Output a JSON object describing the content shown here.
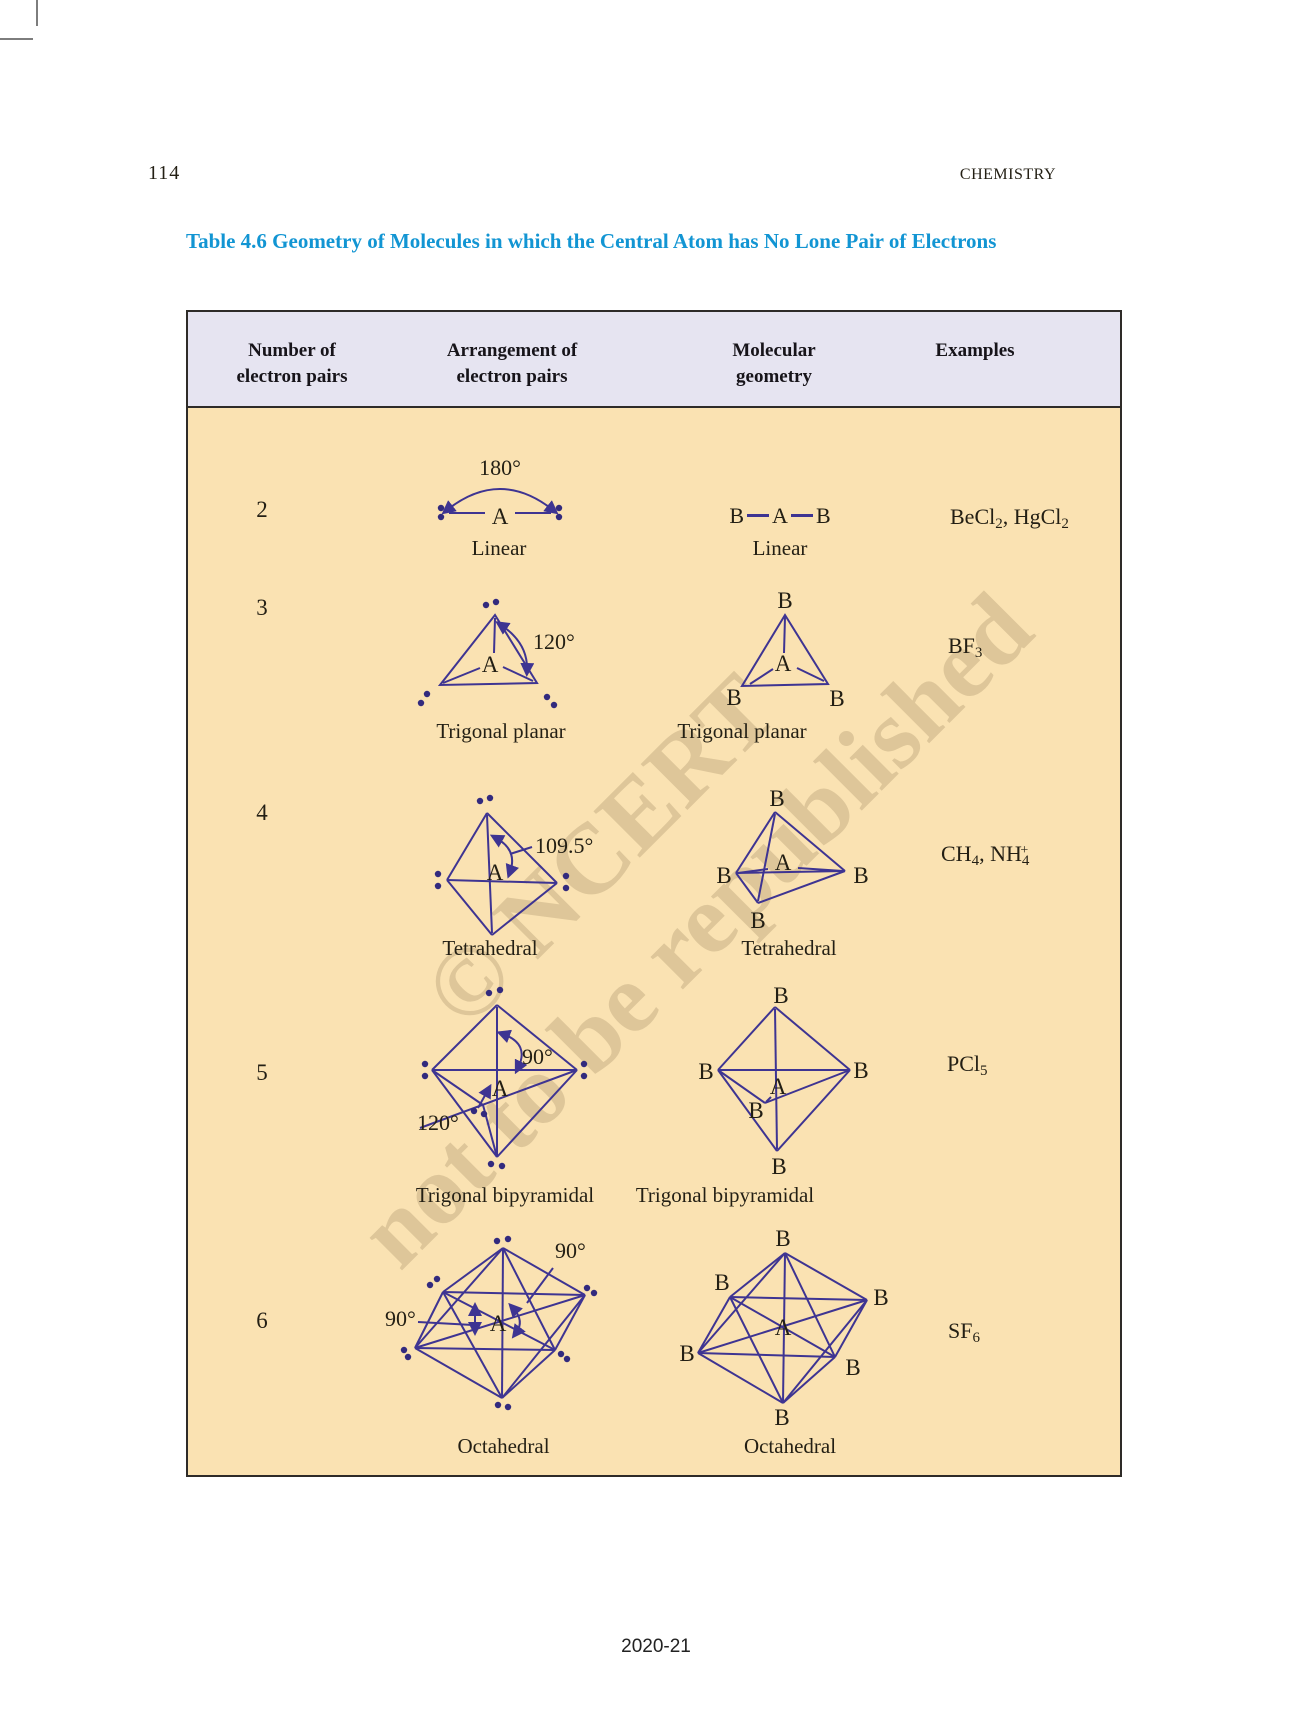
{
  "page": {
    "number": "114",
    "subject": "CHEMISTRY",
    "footer": "2020-21"
  },
  "title": "Table 4.6  Geometry of Molecules in which the Central Atom has No Lone Pair of Electrons",
  "watermark": {
    "line1": "© NCERT",
    "line2": "not to be republished"
  },
  "colors": {
    "title_blue": "#1295d3",
    "header_bg": "#e6e4f1",
    "body_bg": "#fae2b2",
    "diagram_ink": "#3e3492",
    "lone_pair_dot": "#322a7e"
  },
  "table": {
    "headers": [
      [
        "Number of",
        "electron pairs"
      ],
      [
        "Arrangement of",
        "electron pairs"
      ],
      [
        "Molecular",
        "geometry"
      ],
      [
        "Examples"
      ]
    ],
    "atom_center": "A",
    "atom_outer": "B",
    "rows": [
      {
        "pairs": "2",
        "arrangement_caption": "Linear",
        "molecular_caption": "Linear",
        "angles": [
          "180°"
        ],
        "example": [
          {
            "t": "BeCl"
          },
          {
            "t": "2",
            "s": "sub"
          },
          {
            "t": ", HgCl"
          },
          {
            "t": "2",
            "s": "sub"
          }
        ]
      },
      {
        "pairs": "3",
        "arrangement_caption": "Trigonal planar",
        "molecular_caption": "Trigonal planar",
        "angles": [
          "120°"
        ],
        "example": [
          {
            "t": "BF"
          },
          {
            "t": "3",
            "s": "sub"
          }
        ]
      },
      {
        "pairs": "4",
        "arrangement_caption": "Tetrahedral",
        "molecular_caption": "Tetrahedral",
        "angles": [
          "109.5°"
        ],
        "example": [
          {
            "t": "CH"
          },
          {
            "t": "4",
            "s": "sub"
          },
          {
            "t": ", NH"
          },
          {
            "t": "4",
            "s": "sub"
          },
          {
            "t": "+",
            "s": "sup-stack"
          }
        ]
      },
      {
        "pairs": "5",
        "arrangement_caption": "Trigonal bipyramidal",
        "molecular_caption": "Trigonal bipyramidal",
        "angles": [
          "90°",
          "120°"
        ],
        "example": [
          {
            "t": "PCl"
          },
          {
            "t": "5",
            "s": "sub"
          }
        ]
      },
      {
        "pairs": "6",
        "arrangement_caption": "Octahedral",
        "molecular_caption": "Octahedral",
        "angles": [
          "90°",
          "90°"
        ],
        "example": [
          {
            "t": "SF"
          },
          {
            "t": "6",
            "s": "sub"
          }
        ]
      }
    ]
  }
}
